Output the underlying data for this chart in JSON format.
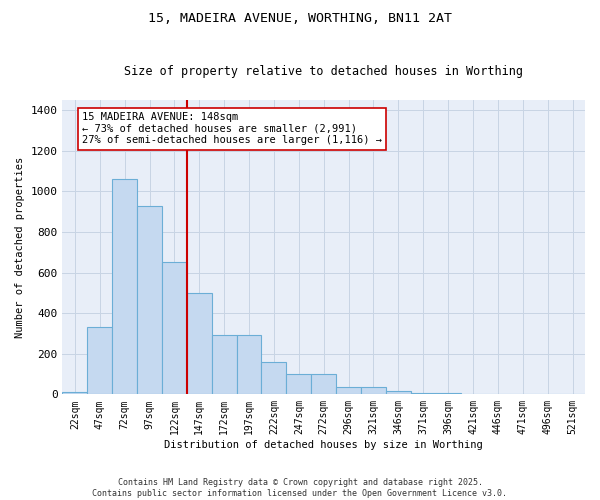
{
  "title1": "15, MADEIRA AVENUE, WORTHING, BN11 2AT",
  "title2": "Size of property relative to detached houses in Worthing",
  "xlabel": "Distribution of detached houses by size in Worthing",
  "ylabel": "Number of detached properties",
  "categories": [
    "22sqm",
    "47sqm",
    "72sqm",
    "97sqm",
    "122sqm",
    "147sqm",
    "172sqm",
    "197sqm",
    "222sqm",
    "247sqm",
    "272sqm",
    "296sqm",
    "321sqm",
    "346sqm",
    "371sqm",
    "396sqm",
    "421sqm",
    "446sqm",
    "471sqm",
    "496sqm",
    "521sqm"
  ],
  "values": [
    10,
    330,
    1060,
    930,
    650,
    500,
    290,
    290,
    160,
    100,
    100,
    35,
    35,
    15,
    7,
    7,
    2,
    2,
    0,
    0,
    0
  ],
  "bar_color": "#c5d9f0",
  "bar_edge_color": "#6baed6",
  "vline_color": "#cc0000",
  "annotation_text": "15 MADEIRA AVENUE: 148sqm\n← 73% of detached houses are smaller (2,991)\n27% of semi-detached houses are larger (1,116) →",
  "annotation_box_color": "#ffffff",
  "annotation_box_edge": "#cc0000",
  "ylim": [
    0,
    1450
  ],
  "yticks": [
    0,
    200,
    400,
    600,
    800,
    1000,
    1200,
    1400
  ],
  "grid_color": "#c8d4e4",
  "bg_color": "#e8eef8",
  "footer": "Contains HM Land Registry data © Crown copyright and database right 2025.\nContains public sector information licensed under the Open Government Licence v3.0.",
  "fig_width": 6.0,
  "fig_height": 5.0
}
